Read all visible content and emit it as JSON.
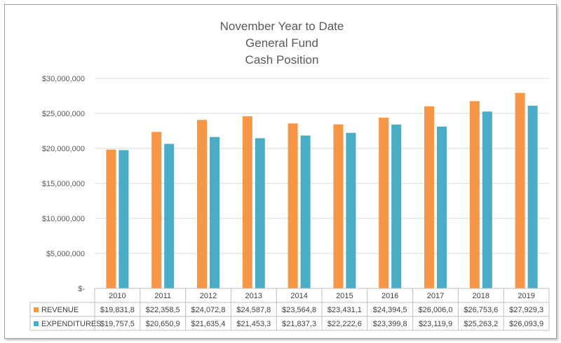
{
  "chart_data": {
    "type": "bar",
    "title": [
      "November Year to Date",
      "General Fund",
      "Cash Position"
    ],
    "categories": [
      "2010",
      "2011",
      "2012",
      "2013",
      "2014",
      "2015",
      "2016",
      "2017",
      "2018",
      "2019"
    ],
    "series": [
      {
        "name": "REVENUE",
        "color": "#f79646",
        "values": [
          19831800,
          22358500,
          24072800,
          24587800,
          23564800,
          23431100,
          24394500,
          26006000,
          26753600,
          27929300
        ],
        "table_labels": [
          "$19,831,8",
          "$22,358,5",
          "$24,072,8",
          "$24,587,8",
          "$23,564,8",
          "$23,431,1",
          "$24,394,5",
          "$26,006,0",
          "$26,753,6",
          "$27,929,3"
        ]
      },
      {
        "name": "EXPENDITURES",
        "color": "#4bacc6",
        "values": [
          19757500,
          20650900,
          21635400,
          21453300,
          21837300,
          22222600,
          23399800,
          23119900,
          25263200,
          26093900
        ],
        "table_labels": [
          "$19,757,5",
          "$20,650,9",
          "$21,635,4",
          "$21,453,3",
          "$21,837,3",
          "$22,222,6",
          "$23,399,8",
          "$23,119,9",
          "$25,263,2",
          "$26,093,9"
        ]
      }
    ],
    "ylim": [
      0,
      30000000
    ],
    "yticks": [
      0,
      5000000,
      10000000,
      15000000,
      20000000,
      25000000,
      30000000
    ],
    "ytick_labels": [
      "$-",
      "$5,000,000",
      "$10,000,000",
      "$15,000,000",
      "$20,000,000",
      "$25,000,000",
      "$30,000,000"
    ],
    "grid": true,
    "legend": "data-table"
  }
}
